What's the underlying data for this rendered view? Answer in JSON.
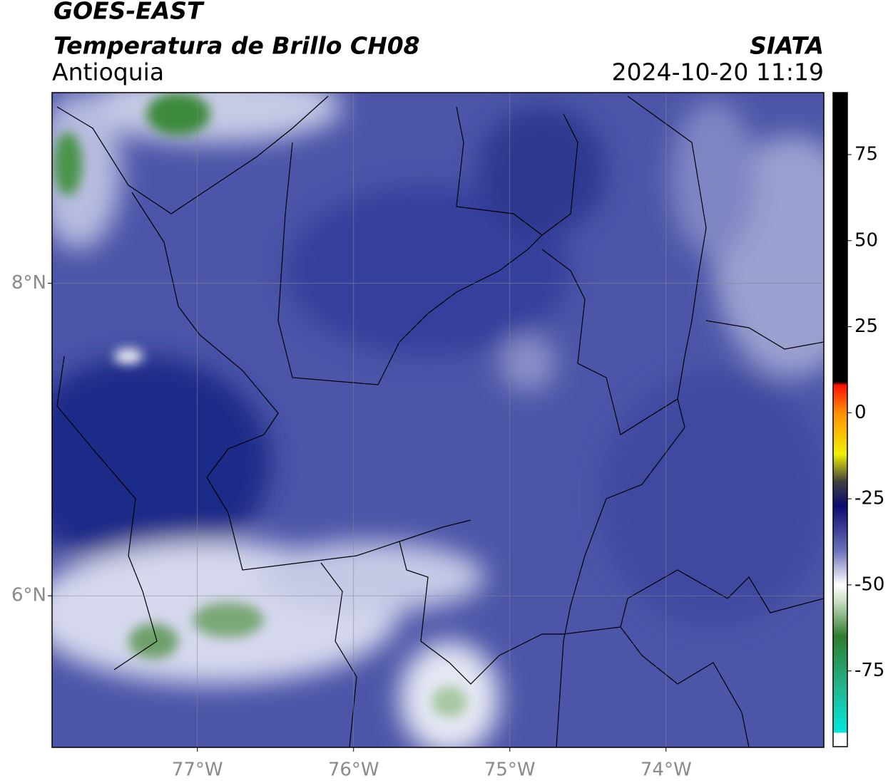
{
  "chart_data": {
    "type": "map",
    "title": "GOES-EAST",
    "subtitle": "Temperatura de Brillo CH08",
    "region": "Antioquia",
    "source": "SIATA",
    "datetime": "2024-10-20 11:19",
    "xlim": [
      -77.93,
      -72.99
    ],
    "ylim": [
      5.03,
      9.22
    ],
    "xticks": [
      {
        "value": -77,
        "label": "77°W"
      },
      {
        "value": -76,
        "label": "76°W"
      },
      {
        "value": -75,
        "label": "75°W"
      },
      {
        "value": -74,
        "label": "74°W"
      }
    ],
    "yticks": [
      {
        "value": 6,
        "label": "6°N"
      },
      {
        "value": 8,
        "label": "8°N"
      }
    ],
    "grid": true,
    "colorbar": {
      "lim": [
        -97,
        93
      ],
      "ticks": [
        75,
        50,
        25,
        0,
        -25,
        -50,
        -75
      ],
      "colormap": [
        {
          "value": -97,
          "color": "#ffffff"
        },
        {
          "value": -93,
          "color": "#ffffff"
        },
        {
          "value": -92.9,
          "color": "#00e8e0"
        },
        {
          "value": -80,
          "color": "#20b890"
        },
        {
          "value": -65,
          "color": "#2e7d2e"
        },
        {
          "value": -55,
          "color": "#c8dcc0"
        },
        {
          "value": -50,
          "color": "#ffffff"
        },
        {
          "value": -40,
          "color": "#6a70b8"
        },
        {
          "value": -27,
          "color": "#0a0a70"
        },
        {
          "value": -20,
          "color": "#404040"
        },
        {
          "value": -12,
          "color": "#f0f000"
        },
        {
          "value": 0,
          "color": "#ff9000"
        },
        {
          "value": 8,
          "color": "#ff1000"
        },
        {
          "value": 9,
          "color": "#000000"
        },
        {
          "value": 93,
          "color": "#000000"
        }
      ]
    }
  }
}
